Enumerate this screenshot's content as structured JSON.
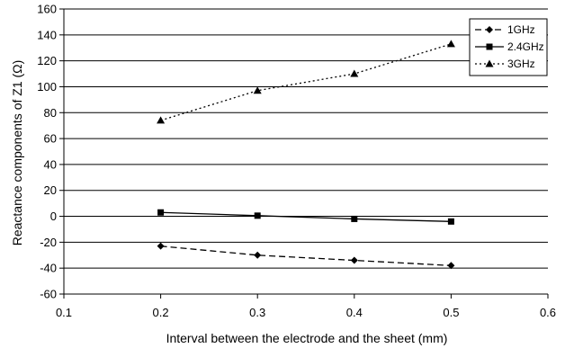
{
  "chart_data": {
    "type": "line",
    "title": "",
    "xlabel": "Interval between the electrode and the sheet (mm)",
    "ylabel": "Reactance components of Z1 (Ω)",
    "xlim": [
      0.1,
      0.6
    ],
    "ylim": [
      -60,
      160
    ],
    "xticks": [
      "0.1",
      "0.2",
      "0.3",
      "0.4",
      "0.5",
      "0.6"
    ],
    "yticks": [
      "-60",
      "-40",
      "-20",
      "0",
      "20",
      "40",
      "60",
      "80",
      "100",
      "120",
      "140",
      "160"
    ],
    "xtick_values": [
      0.1,
      0.2,
      0.3,
      0.4,
      0.5,
      0.6
    ],
    "ytick_values": [
      -60,
      -40,
      -20,
      0,
      20,
      40,
      60,
      80,
      100,
      120,
      140,
      160
    ],
    "grid": "horizontal",
    "legend_position": "top-right",
    "x": [
      0.2,
      0.3,
      0.4,
      0.5
    ],
    "series": [
      {
        "name": "1GHz",
        "values": [
          -23,
          -30,
          -34,
          -38
        ],
        "marker": "diamond",
        "line_style": "dashed",
        "color": "#000000"
      },
      {
        "name": "2.4GHz",
        "values": [
          3,
          0.5,
          -2,
          -4
        ],
        "marker": "square",
        "line_style": "solid",
        "color": "#000000"
      },
      {
        "name": "3GHz",
        "values": [
          74,
          97,
          110,
          133
        ],
        "marker": "triangle",
        "line_style": "dotted",
        "color": "#000000"
      }
    ]
  }
}
